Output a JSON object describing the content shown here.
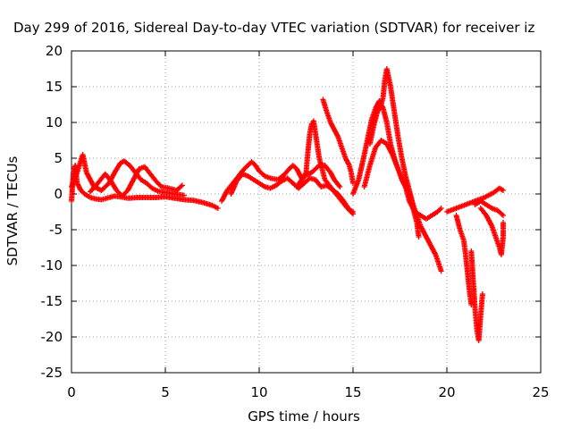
{
  "chart_data": {
    "type": "scatter",
    "title": "Day 299 of 2016, Sidereal Day-to-day VTEC variation (SDTVAR) for receiver iz",
    "xlabel": "GPS time / hours",
    "ylabel": "SDTVAR / TECUs",
    "xlim": [
      0,
      25
    ],
    "ylim": [
      -25,
      20
    ],
    "xticks": [
      "0",
      "5",
      "10",
      "15",
      "20",
      "25"
    ],
    "yticks": [
      "-25",
      "-20",
      "-15",
      "-10",
      "-5",
      "0",
      "5",
      "10",
      "15",
      "20"
    ],
    "grid": true,
    "marker": "+",
    "marker_color": "#ff0000",
    "series": [
      {
        "points": [
          [
            0.0,
            -1.0
          ],
          [
            0.1,
            3.0
          ],
          [
            0.2,
            4.0
          ],
          [
            0.3,
            1.5
          ],
          [
            0.5,
            0.5
          ],
          [
            0.7,
            0.0
          ],
          [
            1.0,
            -0.5
          ],
          [
            1.3,
            -0.7
          ],
          [
            1.6,
            -0.8
          ],
          [
            2.0,
            -0.5
          ],
          [
            2.3,
            -0.3
          ],
          [
            2.6,
            -0.4
          ],
          [
            3.0,
            -0.6
          ],
          [
            3.5,
            -0.5
          ],
          [
            4.0,
            -0.5
          ],
          [
            4.5,
            -0.5
          ],
          [
            5.0,
            -0.4
          ],
          [
            5.5,
            -0.6
          ],
          [
            6.0,
            -0.8
          ],
          [
            6.5,
            -0.9
          ],
          [
            7.0,
            -1.2
          ],
          [
            7.5,
            -1.6
          ],
          [
            7.8,
            -2.0
          ]
        ]
      },
      {
        "points": [
          [
            0.0,
            1.0
          ],
          [
            0.3,
            3.0
          ],
          [
            0.6,
            5.5
          ],
          [
            0.8,
            3.0
          ],
          [
            1.2,
            1.0
          ],
          [
            1.6,
            0.5
          ],
          [
            2.0,
            1.5
          ],
          [
            2.3,
            3.0
          ],
          [
            2.6,
            4.3
          ],
          [
            2.8,
            4.6
          ],
          [
            3.1,
            4.0
          ],
          [
            3.4,
            3.0
          ],
          [
            3.7,
            2.0
          ],
          [
            4.0,
            1.5
          ],
          [
            4.3,
            0.8
          ],
          [
            4.6,
            0.4
          ],
          [
            5.0,
            0.2
          ],
          [
            5.5,
            0.0
          ],
          [
            6.0,
            -0.2
          ]
        ]
      },
      {
        "points": [
          [
            1.0,
            0.3
          ],
          [
            1.4,
            1.5
          ],
          [
            1.8,
            2.8
          ],
          [
            2.1,
            1.8
          ],
          [
            2.4,
            0.5
          ],
          [
            2.7,
            -0.3
          ],
          [
            3.0,
            0.5
          ],
          [
            3.3,
            2.0
          ],
          [
            3.6,
            3.5
          ],
          [
            3.9,
            3.8
          ],
          [
            4.2,
            2.8
          ],
          [
            4.5,
            1.8
          ],
          [
            4.8,
            1.0
          ],
          [
            5.2,
            0.8
          ],
          [
            5.6,
            0.5
          ],
          [
            5.9,
            1.2
          ]
        ]
      },
      {
        "points": [
          [
            8.0,
            -1.0
          ],
          [
            8.3,
            0.5
          ],
          [
            8.6,
            1.5
          ],
          [
            8.9,
            2.5
          ],
          [
            9.2,
            3.5
          ],
          [
            9.4,
            4.0
          ],
          [
            9.6,
            4.5
          ],
          [
            9.8,
            4.0
          ],
          [
            10.0,
            3.2
          ],
          [
            10.3,
            2.5
          ],
          [
            10.6,
            2.2
          ],
          [
            11.0,
            2.0
          ],
          [
            11.3,
            2.6
          ],
          [
            11.6,
            3.5
          ],
          [
            11.8,
            4.0
          ],
          [
            12.0,
            3.5
          ],
          [
            12.3,
            2.0
          ],
          [
            12.5,
            3.0
          ],
          [
            12.6,
            6.0
          ],
          [
            12.7,
            8.5
          ],
          [
            12.8,
            9.8
          ],
          [
            12.9,
            10.2
          ],
          [
            13.0,
            8.5
          ],
          [
            13.2,
            5.0
          ],
          [
            13.5,
            2.0
          ],
          [
            13.8,
            1.0
          ],
          [
            14.1,
            0.0
          ],
          [
            14.4,
            -1.0
          ],
          [
            14.7,
            -2.0
          ],
          [
            15.0,
            -2.8
          ]
        ]
      },
      {
        "points": [
          [
            8.5,
            0.0
          ],
          [
            8.8,
            1.8
          ],
          [
            9.1,
            2.8
          ],
          [
            9.4,
            2.5
          ],
          [
            9.7,
            2.0
          ],
          [
            10.0,
            1.5
          ],
          [
            10.3,
            1.0
          ],
          [
            10.6,
            0.8
          ],
          [
            10.9,
            1.2
          ],
          [
            11.2,
            1.8
          ],
          [
            11.5,
            2.2
          ],
          [
            11.8,
            1.5
          ],
          [
            12.1,
            0.8
          ],
          [
            12.4,
            1.5
          ],
          [
            12.7,
            2.2
          ],
          [
            13.0,
            2.0
          ],
          [
            13.3,
            1.0
          ],
          [
            13.6,
            1.2
          ],
          [
            13.9,
            0.6
          ],
          [
            14.2,
            0.0
          ],
          [
            14.5,
            -1.0
          ],
          [
            14.8,
            -2.2
          ],
          [
            15.0,
            -2.5
          ]
        ]
      },
      {
        "points": [
          [
            12.0,
            1.0
          ],
          [
            12.4,
            2.5
          ],
          [
            12.8,
            3.0
          ],
          [
            13.2,
            4.0
          ],
          [
            13.5,
            4.0
          ],
          [
            13.8,
            3.0
          ],
          [
            14.0,
            2.0
          ],
          [
            14.3,
            1.0
          ]
        ]
      },
      {
        "points": [
          [
            13.4,
            13.2
          ],
          [
            13.6,
            11.5
          ],
          [
            13.8,
            10.0
          ],
          [
            14.0,
            9.0
          ],
          [
            14.2,
            8.0
          ],
          [
            14.4,
            6.5
          ],
          [
            14.6,
            5.0
          ],
          [
            14.8,
            4.0
          ],
          [
            14.9,
            3.0
          ],
          [
            15.0,
            1.5
          ]
        ]
      },
      {
        "points": [
          [
            15.0,
            0.0
          ],
          [
            15.3,
            2.0
          ],
          [
            15.6,
            5.5
          ],
          [
            15.8,
            8.0
          ],
          [
            16.0,
            10.5
          ],
          [
            16.2,
            12.0
          ],
          [
            16.4,
            13.0
          ],
          [
            16.6,
            12.0
          ],
          [
            16.8,
            10.0
          ],
          [
            17.0,
            7.0
          ],
          [
            17.2,
            5.0
          ],
          [
            17.4,
            3.5
          ],
          [
            17.6,
            2.0
          ],
          [
            17.8,
            1.0
          ],
          [
            18.0,
            -1.0
          ],
          [
            18.3,
            -2.5
          ],
          [
            18.6,
            -3.0
          ],
          [
            18.9,
            -3.5
          ],
          [
            19.2,
            -3.0
          ],
          [
            19.5,
            -2.5
          ],
          [
            19.7,
            -2.0
          ]
        ]
      },
      {
        "points": [
          [
            15.9,
            7.0
          ],
          [
            16.1,
            9.5
          ],
          [
            16.3,
            11.5
          ],
          [
            16.5,
            12.5
          ],
          [
            16.6,
            13.5
          ],
          [
            16.7,
            16.0
          ],
          [
            16.8,
            17.5
          ],
          [
            17.0,
            15.0
          ],
          [
            17.2,
            11.5
          ],
          [
            17.4,
            8.0
          ],
          [
            17.6,
            5.0
          ],
          [
            17.8,
            2.5
          ],
          [
            18.0,
            0.5
          ],
          [
            18.2,
            -1.5
          ],
          [
            18.4,
            -3.0
          ],
          [
            18.6,
            -4.5
          ],
          [
            18.8,
            -5.5
          ],
          [
            19.0,
            -6.5
          ],
          [
            19.2,
            -7.5
          ],
          [
            19.4,
            -8.5
          ],
          [
            19.6,
            -10.0
          ],
          [
            19.7,
            -10.8
          ]
        ]
      },
      {
        "points": [
          [
            15.6,
            1.0
          ],
          [
            15.9,
            4.0
          ],
          [
            16.2,
            6.5
          ],
          [
            16.5,
            7.5
          ],
          [
            16.8,
            7.0
          ],
          [
            17.1,
            5.5
          ],
          [
            17.4,
            3.5
          ],
          [
            17.7,
            1.5
          ],
          [
            18.0,
            0.0
          ],
          [
            18.2,
            -2.0
          ],
          [
            18.4,
            -4.0
          ],
          [
            18.5,
            -6.0
          ]
        ]
      },
      {
        "points": [
          [
            20.5,
            -3.0
          ],
          [
            20.7,
            -5.0
          ],
          [
            20.9,
            -6.5
          ],
          [
            21.0,
            -8.5
          ],
          [
            21.1,
            -11.0
          ],
          [
            21.2,
            -13.5
          ],
          [
            21.3,
            -15.5
          ]
        ]
      },
      {
        "points": [
          [
            21.3,
            -8.0
          ],
          [
            21.4,
            -12.0
          ],
          [
            21.5,
            -16.0
          ],
          [
            21.6,
            -19.0
          ],
          [
            21.7,
            -20.5
          ],
          [
            21.8,
            -17.0
          ],
          [
            21.9,
            -14.0
          ]
        ]
      },
      {
        "points": [
          [
            20.0,
            -2.5
          ],
          [
            20.5,
            -2.0
          ],
          [
            21.0,
            -1.5
          ],
          [
            21.5,
            -1.0
          ],
          [
            22.0,
            -0.5
          ],
          [
            22.5,
            0.2
          ],
          [
            22.8,
            0.8
          ],
          [
            23.0,
            0.5
          ]
        ]
      },
      {
        "points": [
          [
            21.5,
            -1.5
          ],
          [
            21.8,
            -1.0
          ],
          [
            22.1,
            -1.5
          ],
          [
            22.4,
            -2.0
          ],
          [
            22.7,
            -2.3
          ],
          [
            23.0,
            -3.0
          ]
        ]
      },
      {
        "points": [
          [
            21.8,
            -2.0
          ],
          [
            22.1,
            -3.0
          ],
          [
            22.4,
            -4.5
          ],
          [
            22.6,
            -6.0
          ],
          [
            22.8,
            -7.5
          ],
          [
            22.9,
            -8.5
          ],
          [
            23.0,
            -6.0
          ],
          [
            23.0,
            -4.0
          ]
        ]
      }
    ]
  }
}
